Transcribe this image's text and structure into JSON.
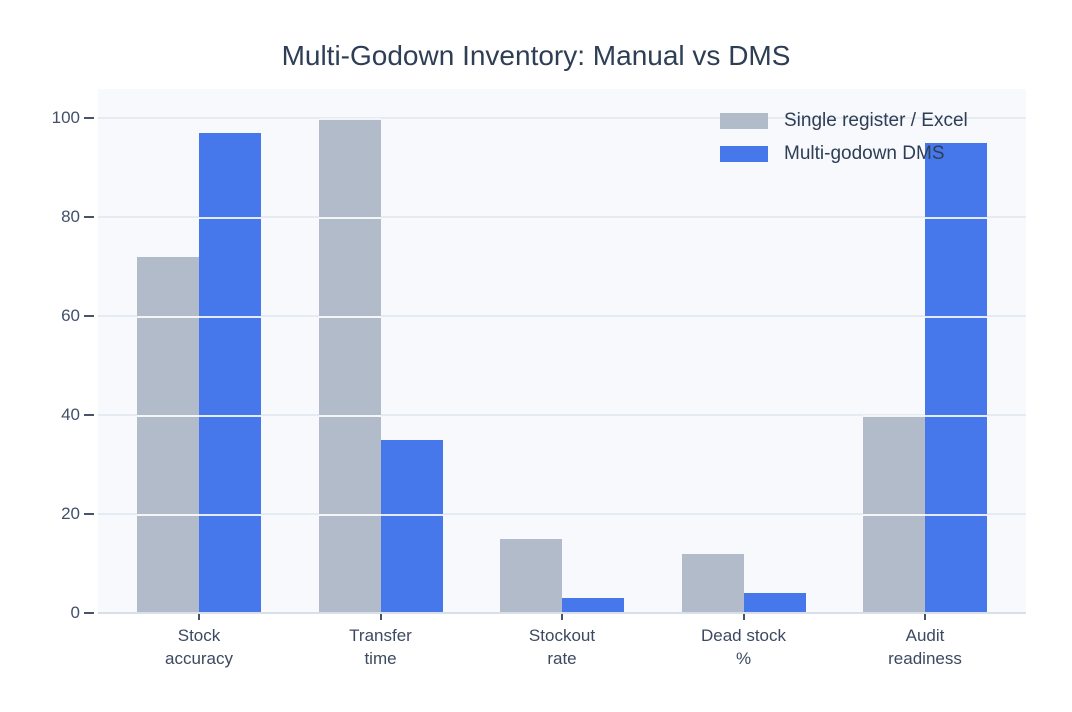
{
  "title": "Multi-Godown Inventory: Manual vs DMS",
  "colors": {
    "plot_background": "#f7f9fc",
    "gridline_under": "#e5ebf3",
    "gridline_over_bars": "rgba(255,255,255,0.85)",
    "zeroline": "#d9dfe9",
    "series_manual": "#b1bbc9",
    "series_dms": "#4678ec"
  },
  "chart_data": {
    "type": "bar",
    "title": "Multi-Godown Inventory: Manual vs DMS",
    "categories": [
      "Stock accuracy",
      "Transfer time",
      "Stockout rate",
      "Dead stock %",
      "Audit readiness"
    ],
    "tick_label_lines": [
      [
        "Stock",
        "accuracy"
      ],
      [
        "Transfer",
        "time"
      ],
      [
        "Stockout",
        "rate"
      ],
      [
        "Dead stock",
        "%"
      ],
      [
        "Audit",
        "readiness"
      ]
    ],
    "series": [
      {
        "name": "Single register / Excel",
        "color": "#b1bbc9",
        "values": [
          72,
          100,
          15,
          12,
          40
        ]
      },
      {
        "name": "Multi-godown DMS",
        "color": "#4678ec",
        "values": [
          97,
          35,
          3,
          4,
          95
        ]
      }
    ],
    "xlabel": "",
    "ylabel": "",
    "ylim": [
      0,
      105.9
    ],
    "yticks": [
      0,
      20,
      40,
      60,
      80,
      100
    ],
    "grid": true,
    "legend_position": "top-right-inside"
  }
}
